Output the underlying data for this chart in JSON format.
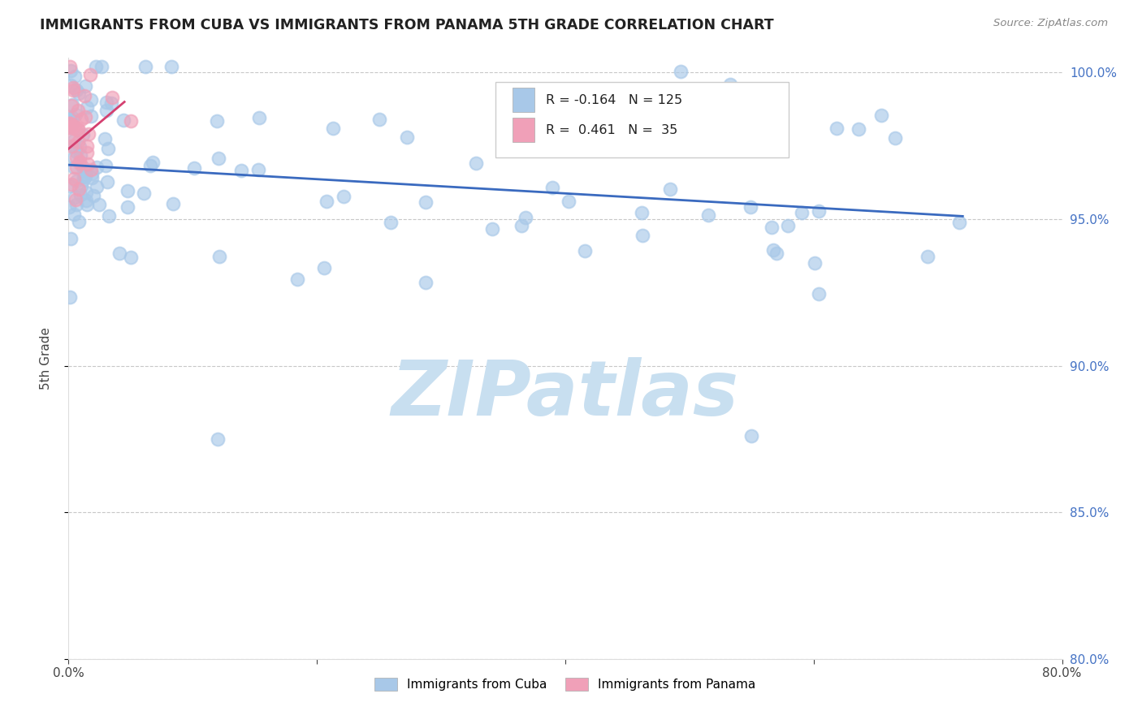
{
  "title": "IMMIGRANTS FROM CUBA VS IMMIGRANTS FROM PANAMA 5TH GRADE CORRELATION CHART",
  "source_text": "Source: ZipAtlas.com",
  "ylabel": "5th Grade",
  "legend_labels": [
    "Immigrants from Cuba",
    "Immigrants from Panama"
  ],
  "r_cuba": -0.164,
  "n_cuba": 125,
  "r_panama": 0.461,
  "n_panama": 35,
  "cuba_color": "#a8c8e8",
  "panama_color": "#f0a0b8",
  "cuba_line_color": "#3a6abf",
  "panama_line_color": "#d44070",
  "watermark_text": "ZIPatlas",
  "watermark_color": "#c8dff0",
  "x_min": 0.0,
  "x_max": 0.8,
  "y_min": 0.8,
  "y_max": 1.005,
  "y_ticks": [
    0.8,
    0.85,
    0.9,
    0.95,
    1.0
  ],
  "y_tick_labels": [
    "80.0%",
    "85.0%",
    "90.0%",
    "95.0%",
    "100.0%"
  ],
  "grid_color": "#c8c8c8",
  "background_color": "#ffffff",
  "cuba_trend_x0": 0.0,
  "cuba_trend_y0": 0.9685,
  "cuba_trend_x1": 0.72,
  "cuba_trend_y1": 0.951,
  "panama_trend_x0": 0.0,
  "panama_trend_y0": 0.974,
  "panama_trend_x1": 0.045,
  "panama_trend_y1": 0.99
}
